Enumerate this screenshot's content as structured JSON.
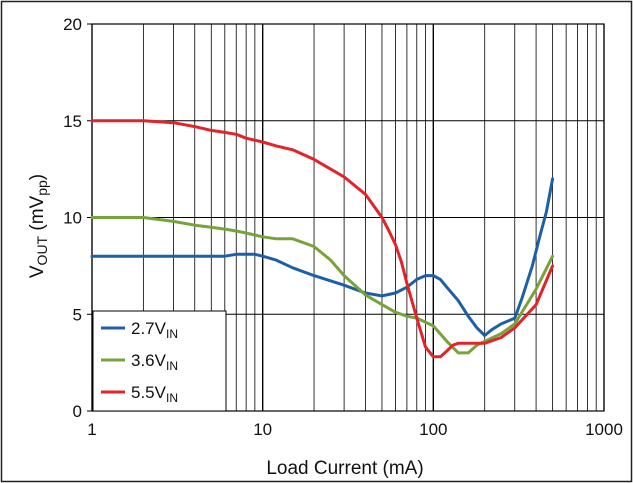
{
  "chart_data": {
    "type": "line",
    "xlabel": "Load Current (mA)",
    "ylabel": {
      "base": "V",
      "sub": "OUT",
      "rest": " (mV",
      "sub2": "pp",
      "close": ")"
    },
    "x_scale": "log",
    "xlim": [
      1,
      1000
    ],
    "ylim": [
      0,
      20
    ],
    "x_ticks": [
      1,
      10,
      100,
      1000
    ],
    "y_ticks": [
      0,
      5,
      10,
      15,
      20
    ],
    "grid": true,
    "legend_position": "bottom-left",
    "series": [
      {
        "name": "2.7V",
        "name_sub": "IN",
        "color": "#1f5fa8",
        "x": [
          1,
          2,
          3,
          5,
          6,
          7,
          8,
          9,
          10,
          12,
          15,
          20,
          30,
          40,
          50,
          60,
          70,
          80,
          90,
          100,
          110,
          120,
          140,
          160,
          180,
          200,
          220,
          250,
          300,
          330,
          380,
          420,
          460,
          500
        ],
        "y": [
          8.0,
          8.0,
          8.0,
          8.0,
          8.0,
          8.1,
          8.1,
          8.1,
          8.0,
          7.8,
          7.4,
          7.0,
          6.5,
          6.1,
          5.95,
          6.1,
          6.4,
          6.8,
          7.0,
          7.0,
          6.8,
          6.4,
          5.7,
          4.9,
          4.3,
          3.9,
          4.2,
          4.5,
          4.8,
          5.8,
          7.5,
          9.0,
          10.3,
          12.0
        ]
      },
      {
        "name": "3.6V",
        "name_sub": "IN",
        "color": "#77a33b",
        "x": [
          1,
          2,
          3,
          4,
          5,
          6,
          7,
          8,
          10,
          12,
          15,
          20,
          25,
          30,
          40,
          50,
          60,
          70,
          80,
          100,
          120,
          140,
          160,
          180,
          200,
          250,
          300,
          400,
          500
        ],
        "y": [
          10.0,
          10.0,
          9.8,
          9.6,
          9.5,
          9.4,
          9.3,
          9.2,
          9.0,
          8.9,
          8.9,
          8.5,
          7.8,
          7.0,
          6.0,
          5.5,
          5.1,
          4.9,
          4.8,
          4.4,
          3.6,
          3.0,
          3.0,
          3.4,
          3.6,
          4.0,
          4.5,
          6.3,
          8.0
        ]
      },
      {
        "name": "5.5V",
        "name_sub": "IN",
        "color": "#e2242a",
        "x": [
          1,
          2,
          3,
          4,
          5,
          6,
          7,
          8,
          10,
          12,
          15,
          20,
          25,
          30,
          40,
          50,
          55,
          60,
          65,
          70,
          80,
          90,
          100,
          110,
          120,
          130,
          140,
          160,
          200,
          250,
          300,
          400,
          500
        ],
        "y": [
          15.0,
          15.0,
          14.9,
          14.7,
          14.5,
          14.4,
          14.3,
          14.1,
          13.9,
          13.7,
          13.5,
          13.0,
          12.5,
          12.1,
          11.2,
          10.0,
          9.3,
          8.6,
          7.7,
          6.6,
          4.8,
          3.3,
          2.8,
          2.8,
          3.1,
          3.4,
          3.5,
          3.5,
          3.5,
          3.8,
          4.3,
          5.5,
          7.5
        ]
      }
    ]
  }
}
